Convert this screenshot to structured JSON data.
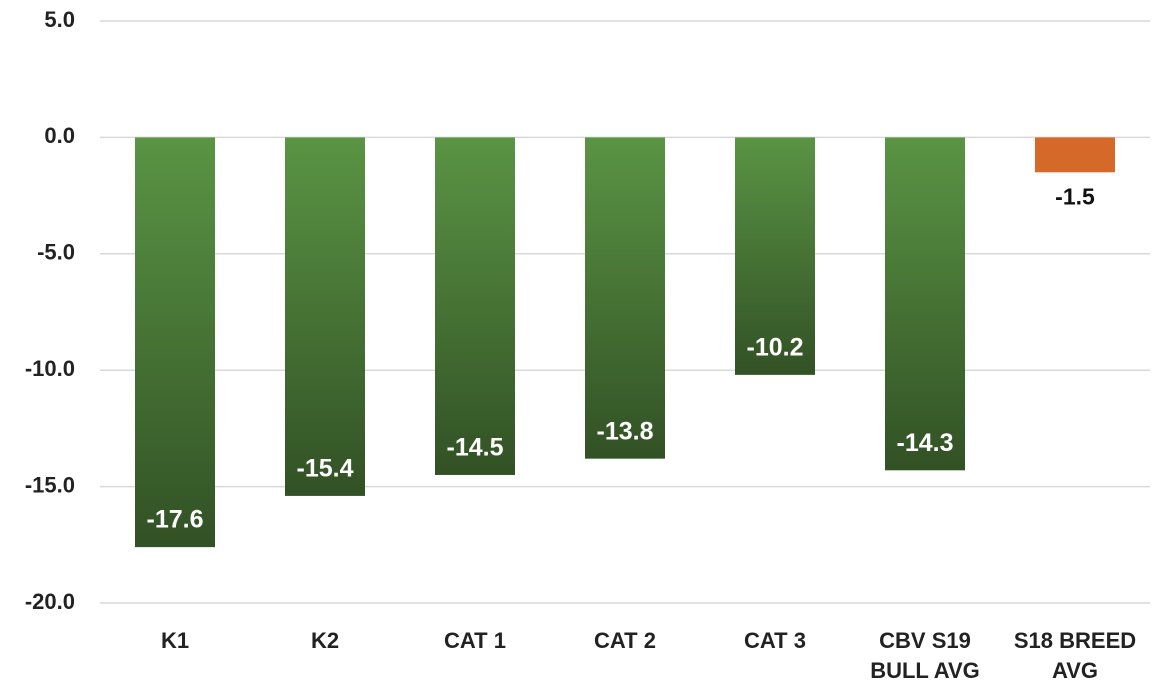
{
  "chart_data": {
    "type": "bar",
    "categories": [
      "K1",
      "K2",
      "CAT 1",
      "CAT 2",
      "CAT 3",
      "CBV S19 BULL AVG",
      "S18 BREED AVG"
    ],
    "values": [
      -17.6,
      -15.4,
      -14.5,
      -13.8,
      -10.2,
      -14.3,
      -1.5
    ],
    "colors": [
      "#5a9444",
      "#5a9444",
      "#5a9444",
      "#5a9444",
      "#5a9444",
      "#5a9444",
      "#d4692a"
    ],
    "ylim": [
      -20,
      5
    ],
    "yticks": [
      {
        "value": 5,
        "label": "5.0"
      },
      {
        "value": 0,
        "label": "0.0"
      },
      {
        "value": -5,
        "label": "-5.0"
      },
      {
        "value": -10,
        "label": "-10.0"
      },
      {
        "value": -15,
        "label": "-15.0"
      },
      {
        "value": -20,
        "label": "-20.0"
      }
    ],
    "grid": true
  }
}
